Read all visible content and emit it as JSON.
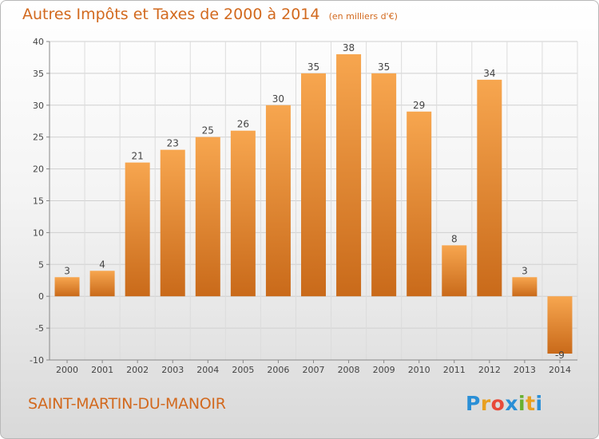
{
  "title": "Autres Impôts et Taxes de 2000 à 2014",
  "subtitle": "(en milliers d'€)",
  "commune": "SAINT-MARTIN-DU-MANOIR",
  "logo": {
    "letters": [
      "P",
      "r",
      "o",
      "x",
      "i",
      "t",
      "i"
    ],
    "colors": [
      "#2a8fd6",
      "#e8a020",
      "#e84a3a",
      "#2a8fd6",
      "#68b030",
      "#e8a020",
      "#2a8fd6"
    ]
  },
  "colors": {
    "bar_light": "#f7a64f",
    "bar_dark": "#c96a1a",
    "accent": "#d2691e"
  },
  "chart_data": {
    "type": "bar",
    "title": "Autres Impôts et Taxes de 2000 à 2014",
    "subtitle": "(en milliers d'€)",
    "categories": [
      "2000",
      "2001",
      "2002",
      "2003",
      "2004",
      "2005",
      "2006",
      "2007",
      "2008",
      "2009",
      "2010",
      "2011",
      "2012",
      "2013",
      "2014"
    ],
    "values": [
      3,
      4,
      21,
      23,
      25,
      26,
      30,
      35,
      38,
      35,
      29,
      8,
      34,
      3,
      -9
    ],
    "ylim": [
      -10,
      40
    ],
    "yticks": [
      -10,
      -5,
      0,
      5,
      10,
      15,
      20,
      25,
      30,
      35,
      40
    ],
    "grid": true
  }
}
